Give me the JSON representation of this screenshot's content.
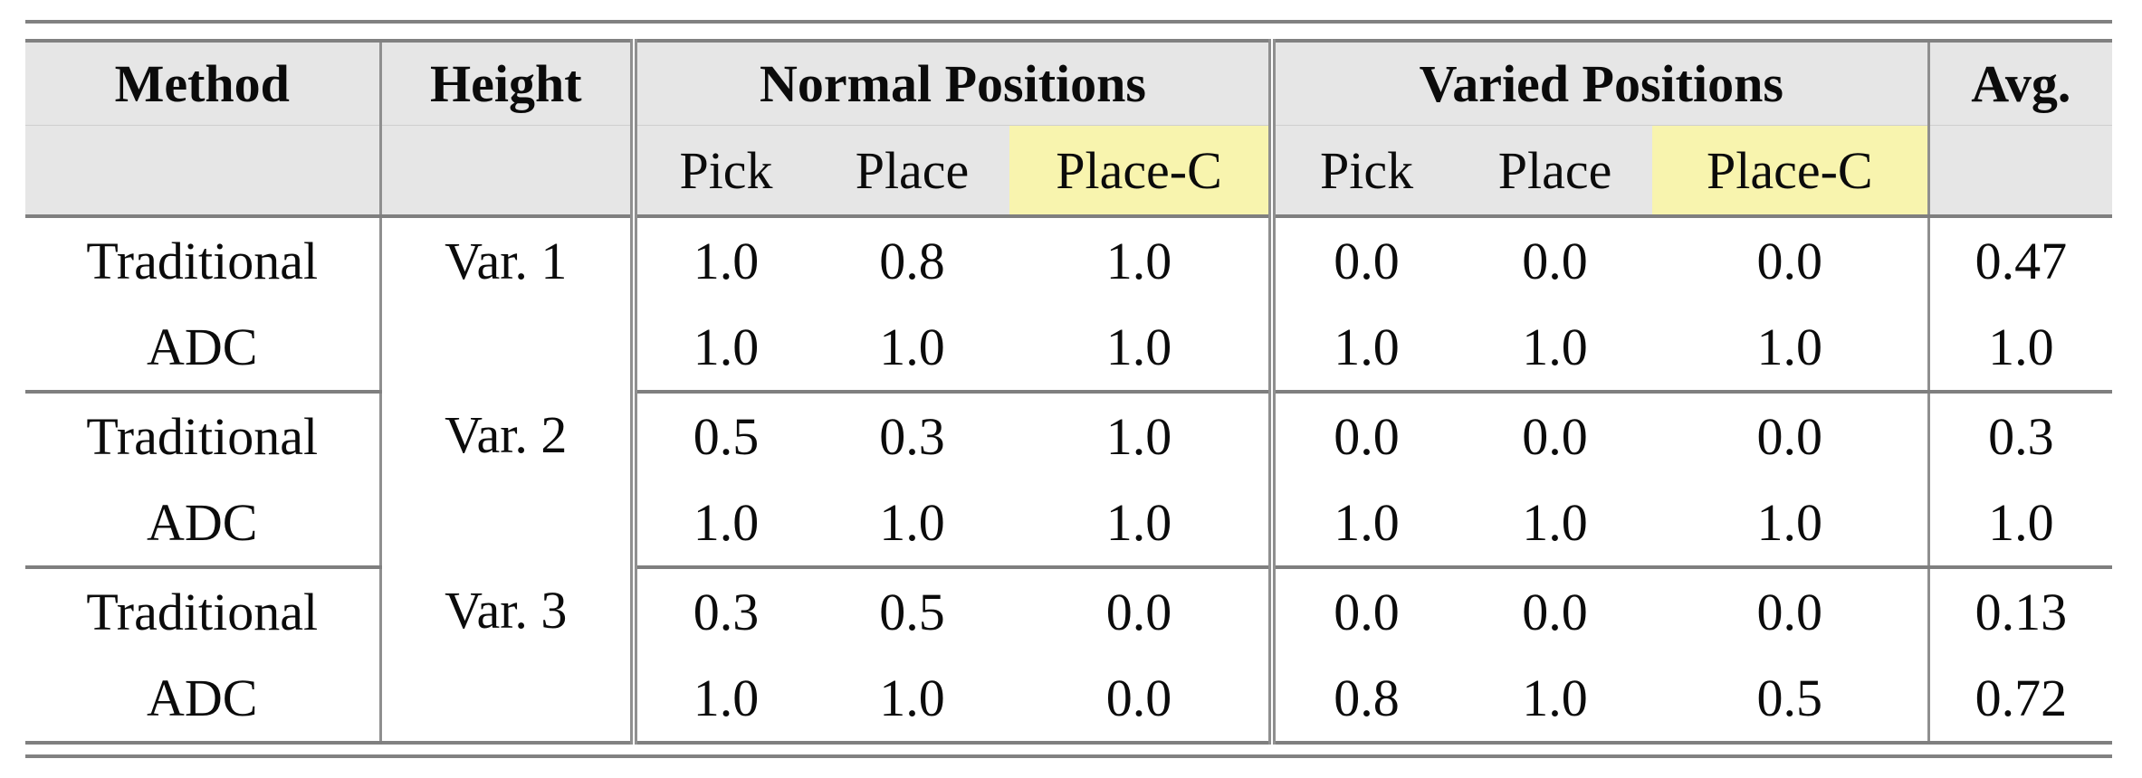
{
  "table": {
    "headers": {
      "method": "Method",
      "height": "Height",
      "normal": "Normal Positions",
      "varied": "Varied Positions",
      "avg": "Avg.",
      "sub": [
        "Pick",
        "Place",
        "Place-C",
        "Pick",
        "Place",
        "Place-C"
      ]
    },
    "groups": [
      {
        "height": "Var. 1",
        "rows": [
          {
            "method": "Traditional",
            "normal": [
              "1.0",
              "0.8",
              "1.0"
            ],
            "varied": [
              "0.0",
              "0.0",
              "0.0"
            ],
            "avg": "0.47"
          },
          {
            "method": "ADC",
            "normal": [
              "1.0",
              "1.0",
              "1.0"
            ],
            "varied": [
              "1.0",
              "1.0",
              "1.0"
            ],
            "avg": "1.0"
          }
        ]
      },
      {
        "height": "Var. 2",
        "rows": [
          {
            "method": "Traditional",
            "normal": [
              "0.5",
              "0.3",
              "1.0"
            ],
            "varied": [
              "0.0",
              "0.0",
              "0.0"
            ],
            "avg": "0.3"
          },
          {
            "method": "ADC",
            "normal": [
              "1.0",
              "1.0",
              "1.0"
            ],
            "varied": [
              "1.0",
              "1.0",
              "1.0"
            ],
            "avg": "1.0"
          }
        ]
      },
      {
        "height": "Var. 3",
        "rows": [
          {
            "method": "Traditional",
            "normal": [
              "0.3",
              "0.5",
              "0.0"
            ],
            "varied": [
              "0.0",
              "0.0",
              "0.0"
            ],
            "avg": "0.13"
          },
          {
            "method": "ADC",
            "normal": [
              "1.0",
              "1.0",
              "0.0"
            ],
            "varied": [
              "0.8",
              "1.0",
              "0.5"
            ],
            "avg": "0.72"
          }
        ]
      }
    ],
    "colors": {
      "header_bg": "#e6e6e6",
      "highlight_yellow": "#f8f4ae",
      "rule_gray": "#7f7f7f"
    }
  }
}
